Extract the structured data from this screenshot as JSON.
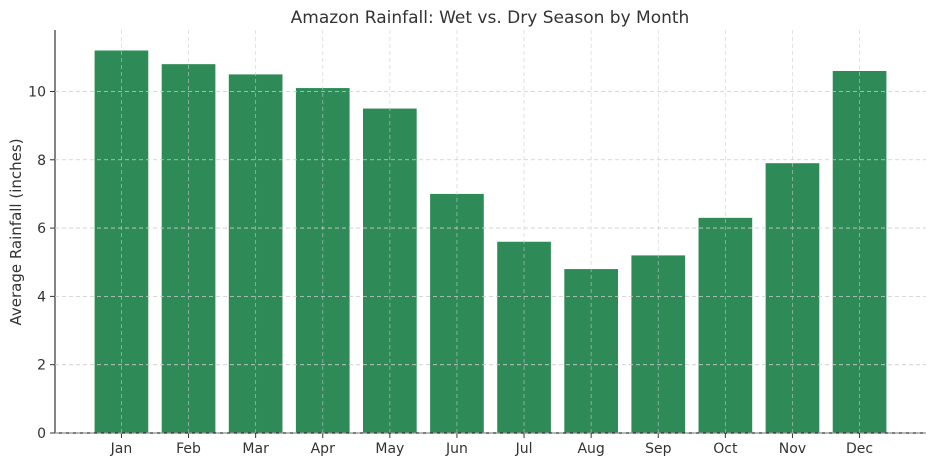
{
  "chart_data": {
    "type": "bar",
    "title": "Amazon Rainfall: Wet vs. Dry Season by Month",
    "xlabel": "",
    "ylabel": "Average Rainfall (inches)",
    "categories": [
      "Jan",
      "Feb",
      "Mar",
      "Apr",
      "May",
      "Jun",
      "Jul",
      "Aug",
      "Sep",
      "Oct",
      "Nov",
      "Dec"
    ],
    "values": [
      11.2,
      10.8,
      10.5,
      10.1,
      9.5,
      7.0,
      5.6,
      4.8,
      5.2,
      6.3,
      7.9,
      10.6
    ],
    "ylim": [
      0,
      11.8
    ],
    "yticks": [
      0,
      2,
      4,
      6,
      8,
      10
    ],
    "grid": true,
    "bar_color": "#2e8b57"
  }
}
